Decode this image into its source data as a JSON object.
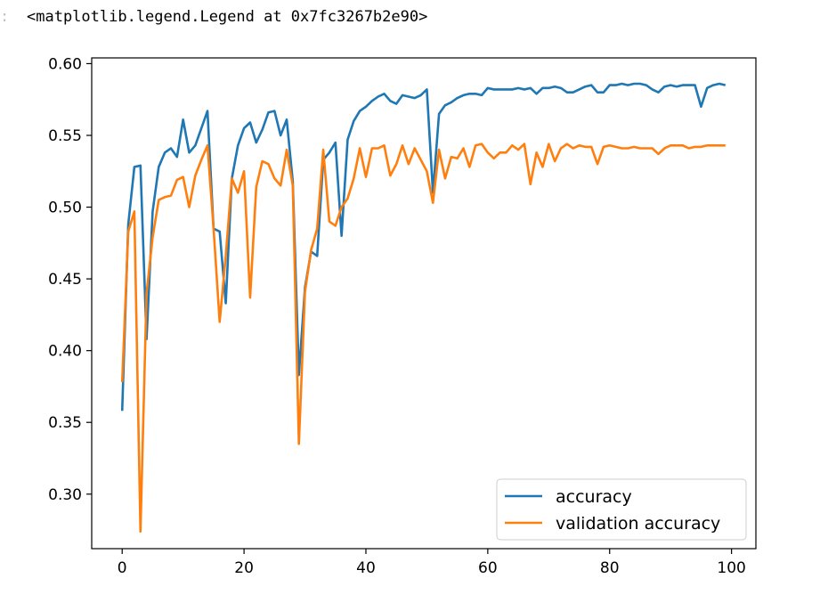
{
  "cell": {
    "prompt_marker": ":",
    "output_text": "<matplotlib.legend.Legend at 0x7fc3267b2e90>"
  },
  "chart_data": {
    "type": "line",
    "title": "",
    "xlabel": "",
    "ylabel": "",
    "xlim": [
      -5,
      104
    ],
    "ylim": [
      0.262,
      0.604
    ],
    "xticks": [
      0,
      20,
      40,
      60,
      80,
      100
    ],
    "yticks": [
      0.3,
      0.35,
      0.4,
      0.45,
      0.5,
      0.55,
      0.6
    ],
    "xtick_labels": [
      "0",
      "20",
      "40",
      "60",
      "80",
      "100"
    ],
    "ytick_labels": [
      "0.30",
      "0.35",
      "0.40",
      "0.45",
      "0.50",
      "0.55",
      "0.60"
    ],
    "grid": false,
    "legend_position": "lower-right",
    "x": [
      0,
      1,
      2,
      3,
      4,
      5,
      6,
      7,
      8,
      9,
      10,
      11,
      12,
      13,
      14,
      15,
      16,
      17,
      18,
      19,
      20,
      21,
      22,
      23,
      24,
      25,
      26,
      27,
      28,
      29,
      30,
      31,
      32,
      33,
      34,
      35,
      36,
      37,
      38,
      39,
      40,
      41,
      42,
      43,
      44,
      45,
      46,
      47,
      48,
      49,
      50,
      51,
      52,
      53,
      54,
      55,
      56,
      57,
      58,
      59,
      60,
      61,
      62,
      63,
      64,
      65,
      66,
      67,
      68,
      69,
      70,
      71,
      72,
      73,
      74,
      75,
      76,
      77,
      78,
      79,
      80,
      81,
      82,
      83,
      84,
      85,
      86,
      87,
      88,
      89,
      90,
      91,
      92,
      93,
      94,
      95,
      96,
      97,
      98,
      99
    ],
    "series": [
      {
        "name": "accuracy",
        "color": "#1f77b4",
        "values": [
          0.358,
          0.488,
          0.528,
          0.529,
          0.408,
          0.497,
          0.528,
          0.538,
          0.541,
          0.535,
          0.561,
          0.538,
          0.543,
          0.555,
          0.567,
          0.485,
          0.483,
          0.433,
          0.52,
          0.543,
          0.555,
          0.559,
          0.545,
          0.554,
          0.566,
          0.567,
          0.55,
          0.561,
          0.518,
          0.383,
          0.444,
          0.469,
          0.466,
          0.533,
          0.538,
          0.545,
          0.48,
          0.547,
          0.56,
          0.567,
          0.57,
          0.574,
          0.577,
          0.579,
          0.574,
          0.572,
          0.578,
          0.577,
          0.576,
          0.578,
          0.582,
          0.51,
          0.565,
          0.571,
          0.573,
          0.576,
          0.578,
          0.579,
          0.579,
          0.578,
          0.583,
          0.582,
          0.582,
          0.582,
          0.582,
          0.583,
          0.582,
          0.583,
          0.579,
          0.583,
          0.583,
          0.584,
          0.583,
          0.58,
          0.58,
          0.582,
          0.584,
          0.585,
          0.58,
          0.58,
          0.585,
          0.585,
          0.586,
          0.585,
          0.586,
          0.586,
          0.585,
          0.582,
          0.58,
          0.584,
          0.585,
          0.584,
          0.585,
          0.585,
          0.585,
          0.57,
          0.583,
          0.585,
          0.586,
          0.585
        ]
      },
      {
        "name": "validation accuracy",
        "color": "#ff7f0e",
        "values": [
          0.378,
          0.483,
          0.497,
          0.274,
          0.44,
          0.479,
          0.505,
          0.507,
          0.508,
          0.519,
          0.521,
          0.5,
          0.522,
          0.533,
          0.543,
          0.485,
          0.42,
          0.466,
          0.52,
          0.51,
          0.525,
          0.437,
          0.514,
          0.532,
          0.53,
          0.52,
          0.515,
          0.54,
          0.515,
          0.335,
          0.441,
          0.47,
          0.485,
          0.54,
          0.49,
          0.487,
          0.5,
          0.506,
          0.52,
          0.541,
          0.521,
          0.541,
          0.541,
          0.543,
          0.522,
          0.53,
          0.543,
          0.53,
          0.541,
          0.533,
          0.525,
          0.503,
          0.54,
          0.52,
          0.535,
          0.534,
          0.541,
          0.528,
          0.543,
          0.544,
          0.538,
          0.534,
          0.538,
          0.538,
          0.543,
          0.54,
          0.544,
          0.516,
          0.538,
          0.528,
          0.544,
          0.532,
          0.541,
          0.544,
          0.541,
          0.543,
          0.542,
          0.542,
          0.53,
          0.542,
          0.543,
          0.542,
          0.541,
          0.541,
          0.542,
          0.541,
          0.541,
          0.541,
          0.537,
          0.541,
          0.543,
          0.543,
          0.543,
          0.541,
          0.542,
          0.542,
          0.543,
          0.543,
          0.543,
          0.543
        ]
      }
    ]
  }
}
